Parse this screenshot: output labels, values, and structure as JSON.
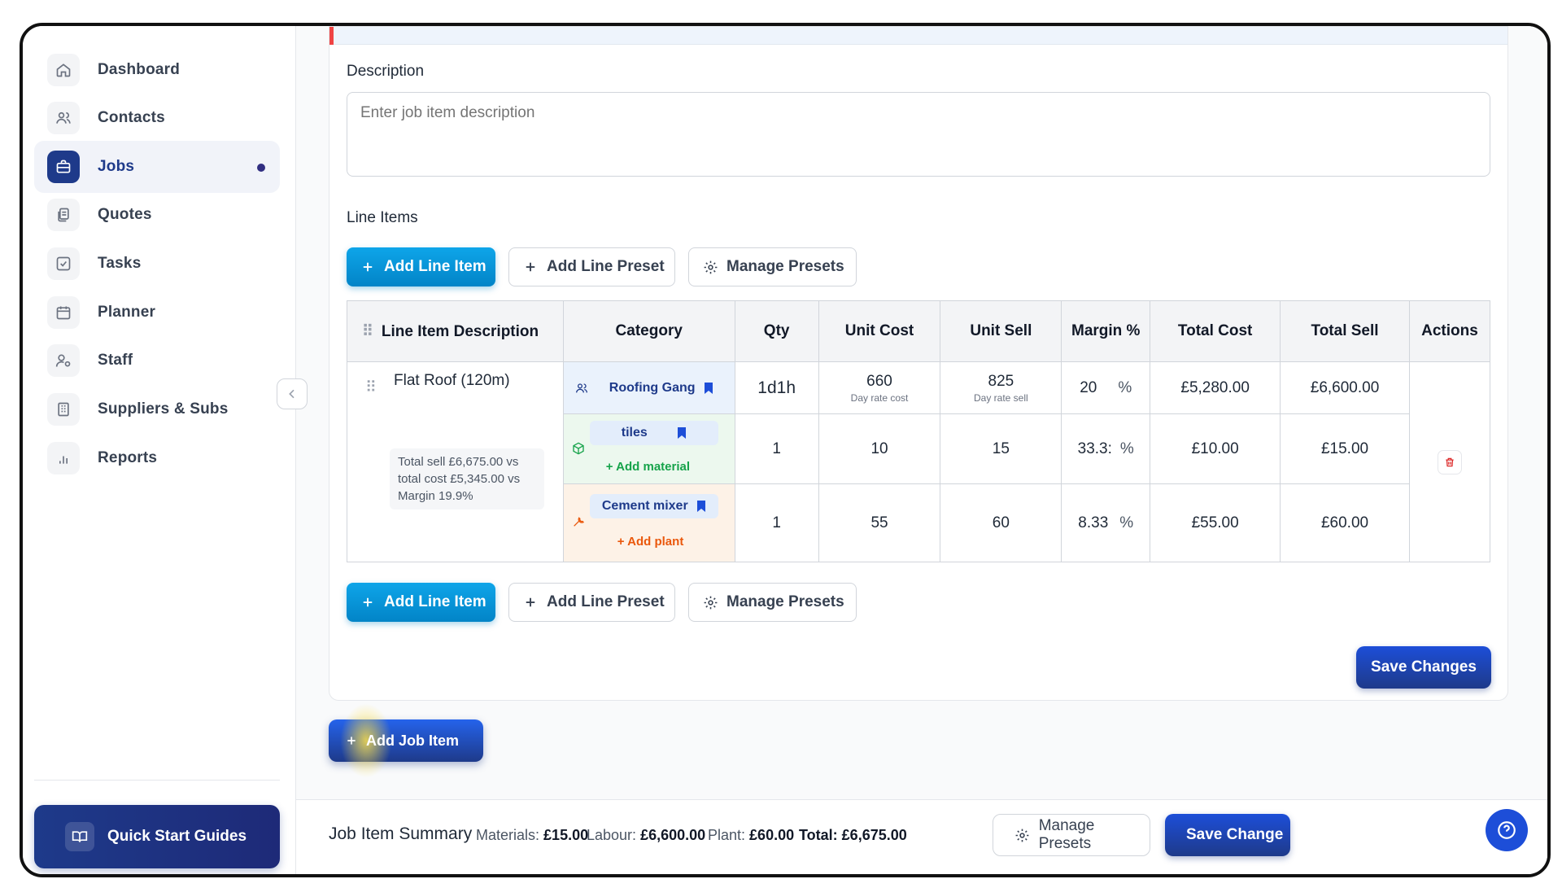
{
  "sidebar": {
    "items": [
      {
        "label": "Dashboard",
        "icon": "home-icon"
      },
      {
        "label": "Contacts",
        "icon": "users-icon"
      },
      {
        "label": "Jobs",
        "icon": "briefcase-icon",
        "active": true
      },
      {
        "label": "Quotes",
        "icon": "document-icon"
      },
      {
        "label": "Tasks",
        "icon": "checkbox-icon"
      },
      {
        "label": "Planner",
        "icon": "calendar-icon"
      },
      {
        "label": "Staff",
        "icon": "user-cog-icon"
      },
      {
        "label": "Suppliers & Subs",
        "icon": "building-icon"
      },
      {
        "label": "Reports",
        "icon": "bar-chart-icon"
      }
    ],
    "quick_start_label": "Quick Start Guides"
  },
  "form": {
    "description_label": "Description",
    "description_placeholder": "Enter job item description",
    "line_items_label": "Line Items"
  },
  "actions": {
    "add_line_item": "Add Line Item",
    "add_line_preset": "Add Line Preset",
    "manage_presets": "Manage Presets",
    "save_changes": "Save Changes",
    "add_job_item": "Add Job Item"
  },
  "table": {
    "headers": {
      "description": "Line Item Description",
      "category": "Category",
      "qty": "Qty",
      "unit_cost": "Unit Cost",
      "unit_sell": "Unit Sell",
      "margin": "Margin %",
      "total_cost": "Total Cost",
      "total_sell": "Total Sell",
      "actions": "Actions"
    },
    "item": {
      "name": "Flat Roof (120m)",
      "summary": "Total sell £6,675.00 vs total cost £5,345.00 vs Margin 19.9%"
    },
    "rows": [
      {
        "category": "Roofing Gang",
        "category_type": "labour",
        "qty": "1d1h",
        "unit_cost": "660",
        "unit_cost_note": "Day rate cost",
        "unit_sell": "825",
        "unit_sell_note": "Day rate sell",
        "margin": "20",
        "pct": "%",
        "total_cost": "£5,280.00",
        "total_sell": "£6,600.00"
      },
      {
        "category": "tiles",
        "category_type": "material",
        "add_label": "Add material",
        "qty": "1",
        "unit_cost": "10",
        "unit_sell": "15",
        "margin": "33.3:",
        "pct": "%",
        "total_cost": "£10.00",
        "total_sell": "£15.00"
      },
      {
        "category": "Cement mixer",
        "category_type": "plant",
        "add_label": "Add plant",
        "qty": "1",
        "unit_cost": "55",
        "unit_sell": "60",
        "margin": "8.33",
        "pct": "%",
        "total_cost": "£55.00",
        "total_sell": "£60.00"
      }
    ]
  },
  "footer": {
    "title": "Job Item Summary",
    "materials_label": "Materials:",
    "materials_value": "£15.00",
    "labour_label": "Labour:",
    "labour_value": "£6,600.00",
    "plant_label": "Plant:",
    "plant_value": "£60.00",
    "total_label": "Total:",
    "total_value": "£6,675.00",
    "manage_presets": "Manage Presets",
    "save_changes": "Save Change"
  },
  "colors": {
    "brand": "#1e3a8a",
    "accent": "#0ea5e9",
    "labour_bg": "#eaf2fc",
    "material_bg": "#ecf8ee",
    "plant_bg": "#fdf2e7",
    "material_accent": "#16a34a",
    "plant_accent": "#ea580c",
    "danger": "#dc2626"
  }
}
